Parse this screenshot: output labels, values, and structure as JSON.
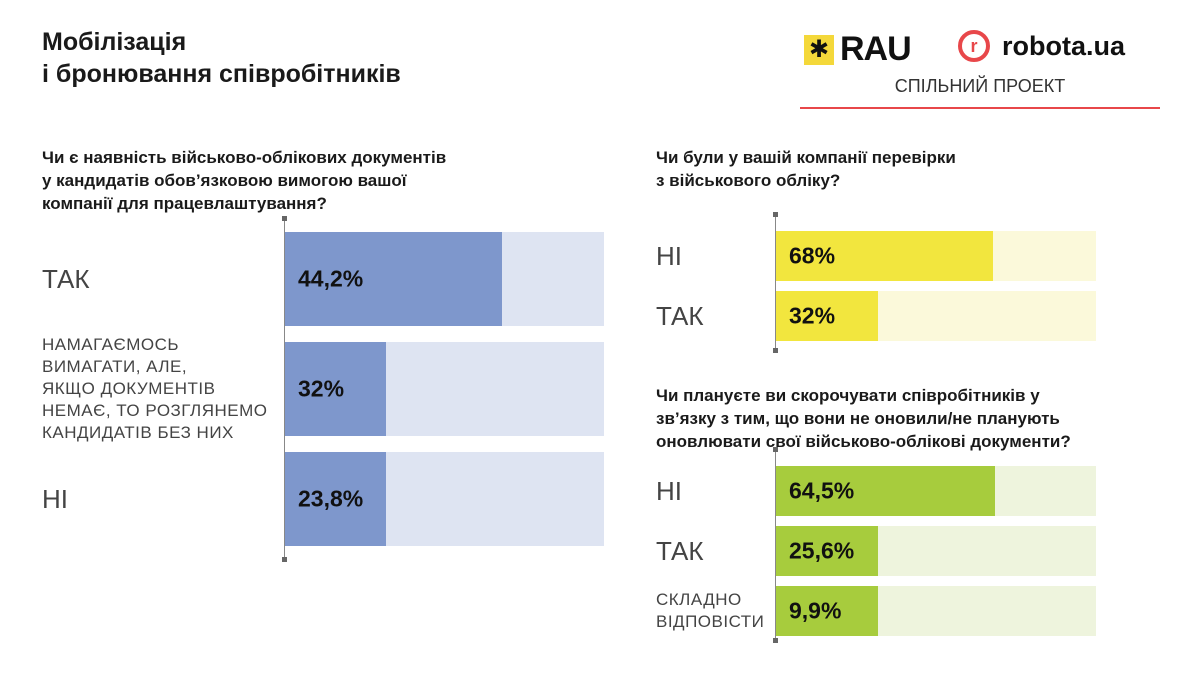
{
  "header": {
    "title_line1": "Мобілізація",
    "title_line2": "і бронювання співробітників",
    "logo_rau": "RAU",
    "logo_robota": "robota.ua",
    "logo_robota_mark": "r",
    "joint_project": "СПІЛЬНИЙ ПРОЕКТ"
  },
  "chart_data": [
    {
      "type": "bar",
      "title": "Чи є наявність військово-облікових документів у кандидатів обов’язковою вимогою вашої компанії для працевлаштування?",
      "title_lines": [
        "Чи є наявність військово-облікових документів",
        "у кандидатів обов’язковою вимогою вашої",
        "компанії для працевлаштування?"
      ],
      "categories": [
        "ТАК",
        "НАМАГАЄМОСЬ ВИМАГАТИ, АЛЕ, ЯКЩО ДОКУМЕНТІВ НЕМАЄ, ТО РОЗГЛЯНЕМО КАНДИДАТІВ БЕЗ НИХ",
        "НІ"
      ],
      "category_lines": [
        [
          "ТАК"
        ],
        [
          "НАМАГАЄМОСЬ",
          "ВИМАГАТИ, АЛЕ,",
          "ЯКЩО ДОКУМЕНТІВ",
          "НЕМАЄ, ТО РОЗГЛЯНЕМО",
          "КАНДИДАТІВ БЕЗ НИХ"
        ],
        [
          "НІ"
        ]
      ],
      "values": [
        44.2,
        32,
        23.8
      ],
      "value_labels": [
        "44,2%",
        "32%",
        "23,8%"
      ],
      "display_fill": [
        0.68,
        0.32,
        0.32
      ],
      "unit": "%",
      "colors": {
        "fill": "#7e97cc",
        "track": "#dee4f2"
      }
    },
    {
      "type": "bar",
      "title": "Чи були у вашій компанії перевірки з військового обліку?",
      "title_lines": [
        "Чи були у вашій компанії перевірки",
        "з військового обліку?"
      ],
      "categories": [
        "НІ",
        "ТАК"
      ],
      "category_lines": [
        [
          "НІ"
        ],
        [
          "ТАК"
        ]
      ],
      "values": [
        68,
        32
      ],
      "value_labels": [
        "68%",
        "32%"
      ],
      "display_fill": [
        0.68,
        0.32
      ],
      "unit": "%",
      "colors": {
        "fill": "#f2e63e",
        "track": "#fbf9da"
      }
    },
    {
      "type": "bar",
      "title": "Чи плануєте ви скорочувати співробітників у зв’язку з тим, що вони не оновили/не планують оновлювати свої військово-облікові документи?",
      "title_lines": [
        "Чи плануєте ви скорочувати співробітників у",
        "зв’язку з тим, що вони не оновили/не планують",
        "оновлювати свої військово-облікові документи?"
      ],
      "categories": [
        "НІ",
        "ТАК",
        "СКЛАДНО ВІДПОВІСТИ"
      ],
      "category_lines": [
        [
          "НІ"
        ],
        [
          "ТАК"
        ],
        [
          "СКЛАДНО",
          "ВІДПОВІСТИ"
        ]
      ],
      "values": [
        64.5,
        25.6,
        9.9
      ],
      "value_labels": [
        "64,5%",
        "25,6%",
        "9,9%"
      ],
      "display_fill": [
        0.685,
        0.32,
        0.32
      ],
      "unit": "%",
      "colors": {
        "fill": "#a7cc3d",
        "track": "#eef4dd"
      }
    }
  ]
}
